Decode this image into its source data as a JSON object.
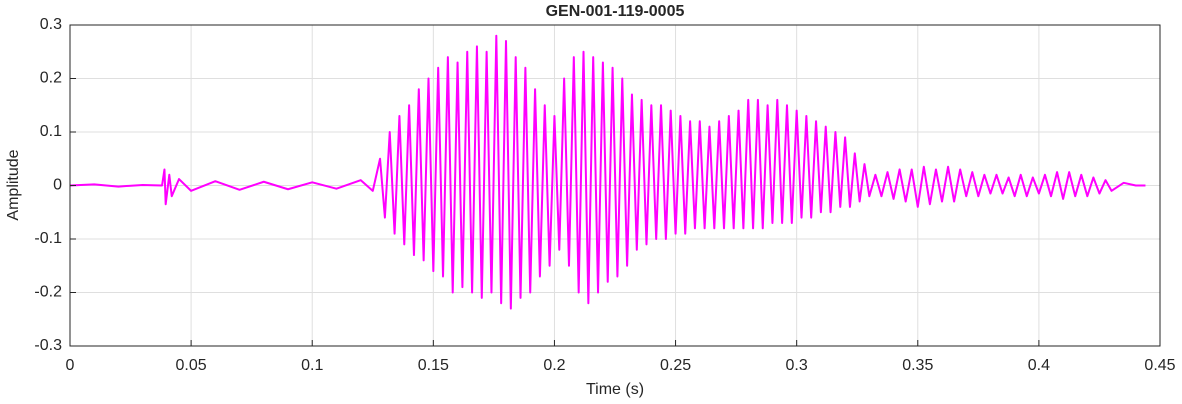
{
  "chart_data": {
    "type": "line",
    "title": "GEN-001-119-0005",
    "xlabel": "Time (s)",
    "ylabel": "Amplitude",
    "color": "#ff00ff",
    "grid": true,
    "xlim": [
      0,
      0.45
    ],
    "ylim": [
      -0.3,
      0.3
    ],
    "xticks": [
      0,
      0.05,
      0.1,
      0.15,
      0.2,
      0.25,
      0.3,
      0.35,
      0.4,
      0.45
    ],
    "yticks": [
      -0.3,
      -0.2,
      -0.1,
      0,
      0.1,
      0.2,
      0.3
    ],
    "x": [
      0,
      0.01,
      0.02,
      0.03,
      0.038,
      0.039,
      0.0395,
      0.041,
      0.042,
      0.045,
      0.05,
      0.06,
      0.07,
      0.08,
      0.09,
      0.1,
      0.11,
      0.12,
      0.125,
      0.128,
      0.13,
      0.132,
      0.134,
      0.136,
      0.138,
      0.14,
      0.142,
      0.144,
      0.146,
      0.148,
      0.15,
      0.152,
      0.154,
      0.156,
      0.158,
      0.16,
      0.162,
      0.164,
      0.166,
      0.168,
      0.17,
      0.172,
      0.174,
      0.176,
      0.178,
      0.18,
      0.182,
      0.184,
      0.186,
      0.188,
      0.19,
      0.192,
      0.194,
      0.196,
      0.198,
      0.2,
      0.202,
      0.204,
      0.206,
      0.208,
      0.21,
      0.212,
      0.214,
      0.216,
      0.218,
      0.22,
      0.222,
      0.224,
      0.226,
      0.228,
      0.23,
      0.232,
      0.234,
      0.236,
      0.238,
      0.24,
      0.242,
      0.244,
      0.246,
      0.248,
      0.25,
      0.252,
      0.254,
      0.256,
      0.258,
      0.26,
      0.262,
      0.264,
      0.266,
      0.268,
      0.27,
      0.272,
      0.274,
      0.276,
      0.278,
      0.28,
      0.282,
      0.284,
      0.286,
      0.288,
      0.29,
      0.292,
      0.294,
      0.296,
      0.298,
      0.3,
      0.302,
      0.304,
      0.306,
      0.308,
      0.31,
      0.312,
      0.314,
      0.316,
      0.318,
      0.32,
      0.322,
      0.324,
      0.326,
      0.328,
      0.33,
      0.3325,
      0.335,
      0.3375,
      0.34,
      0.3425,
      0.345,
      0.3475,
      0.35,
      0.3525,
      0.355,
      0.3575,
      0.36,
      0.3625,
      0.365,
      0.3675,
      0.37,
      0.3725,
      0.375,
      0.3775,
      0.38,
      0.3825,
      0.385,
      0.3875,
      0.39,
      0.3925,
      0.395,
      0.3975,
      0.4,
      0.4025,
      0.405,
      0.4075,
      0.41,
      0.4125,
      0.415,
      0.4175,
      0.42,
      0.4225,
      0.425,
      0.4275,
      0.43,
      0.435,
      0.44,
      0.444
    ],
    "values": [
      0,
      0.002,
      -0.002,
      0.001,
      0,
      0.03,
      -0.035,
      0.02,
      -0.02,
      0.012,
      -0.01,
      0.008,
      -0.008,
      0.007,
      -0.007,
      0.006,
      -0.006,
      0.01,
      -0.01,
      0.05,
      -0.06,
      0.1,
      -0.09,
      0.13,
      -0.11,
      0.15,
      -0.13,
      0.18,
      -0.14,
      0.2,
      -0.16,
      0.22,
      -0.17,
      0.24,
      -0.2,
      0.23,
      -0.19,
      0.25,
      -0.2,
      0.26,
      -0.21,
      0.25,
      -0.2,
      0.28,
      -0.22,
      0.27,
      -0.23,
      0.24,
      -0.21,
      0.22,
      -0.2,
      0.18,
      -0.17,
      0.15,
      -0.15,
      0.13,
      -0.12,
      0.2,
      -0.15,
      0.24,
      -0.2,
      0.25,
      -0.22,
      0.24,
      -0.2,
      0.23,
      -0.18,
      0.22,
      -0.17,
      0.2,
      -0.15,
      0.17,
      -0.12,
      0.16,
      -0.11,
      0.15,
      -0.1,
      0.15,
      -0.1,
      0.14,
      -0.09,
      0.13,
      -0.09,
      0.12,
      -0.08,
      0.12,
      -0.08,
      0.11,
      -0.08,
      0.12,
      -0.08,
      0.13,
      -0.08,
      0.14,
      -0.08,
      0.16,
      -0.08,
      0.16,
      -0.08,
      0.15,
      -0.07,
      0.16,
      -0.07,
      0.15,
      -0.07,
      0.14,
      -0.06,
      0.13,
      -0.06,
      0.12,
      -0.05,
      0.11,
      -0.05,
      0.1,
      -0.04,
      0.09,
      -0.04,
      0.06,
      -0.03,
      0.04,
      -0.02,
      0.02,
      -0.02,
      0.025,
      -0.025,
      0.03,
      -0.03,
      0.03,
      -0.04,
      0.035,
      -0.035,
      0.03,
      -0.03,
      0.035,
      -0.03,
      0.03,
      -0.02,
      0.025,
      -0.02,
      0.02,
      -0.015,
      0.02,
      -0.015,
      0.015,
      -0.02,
      0.02,
      -0.02,
      0.015,
      -0.015,
      0.02,
      -0.02,
      0.025,
      -0.025,
      0.025,
      -0.02,
      0.02,
      -0.02,
      0.015,
      -0.015,
      0.01,
      -0.01,
      0.005,
      0,
      0
    ]
  }
}
